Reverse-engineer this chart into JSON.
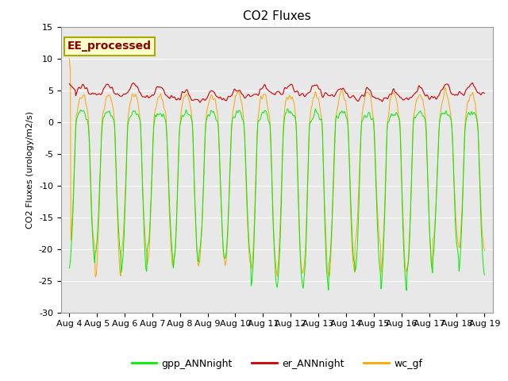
{
  "title": "CO2 Fluxes",
  "ylabel": "CO2 Fluxes (urology/m2/s)",
  "annotation": "EE_processed",
  "ylim": [
    -30,
    15
  ],
  "background_color": "#ffffff",
  "plot_bg_color": "#e8e8e8",
  "gpp_color": "#00ee00",
  "er_color": "#cc0000",
  "wc_color": "#ffa500",
  "legend_labels": [
    "gpp_ANNnight",
    "er_ANNnight",
    "wc_gf"
  ],
  "n_days": 16,
  "n_points_per_day": 48,
  "title_fontsize": 11,
  "axis_fontsize": 8,
  "legend_fontsize": 9,
  "annotation_fontsize": 10,
  "tick_labels": [
    "Aug 4",
    "Aug 5",
    "Aug 6",
    "Aug 7",
    "Aug 8",
    "Aug 9",
    "Aug 10",
    "Aug 11",
    "Aug 12",
    "Aug 13",
    "Aug 14",
    "Aug 15",
    "Aug 16",
    "Aug 17",
    "Aug 18",
    "Aug 19"
  ],
  "yticks": [
    -30,
    -25,
    -20,
    -15,
    -10,
    -5,
    0,
    5,
    10,
    15
  ]
}
